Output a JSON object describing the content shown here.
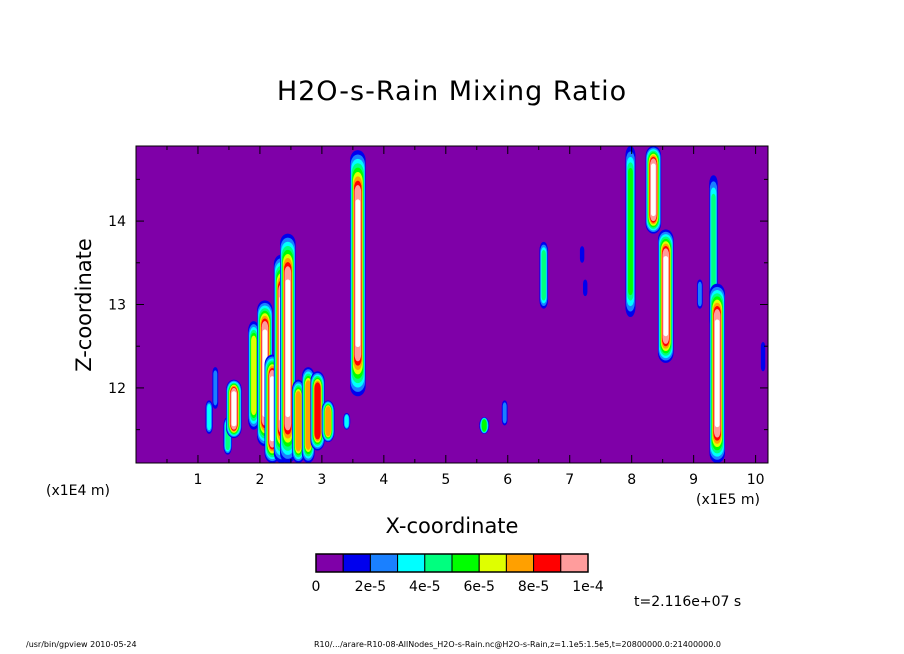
{
  "chart_data": {
    "type": "heatmap",
    "title": "H2O-s-Rain Mixing Ratio",
    "xlabel": "X-coordinate",
    "ylabel": "Z-coordinate",
    "x_unit_label": "(x1E5 m)",
    "y_unit_label": "(x1E4 m)",
    "xlim": [
      0.0,
      10.2
    ],
    "ylim": [
      11.1,
      14.9
    ],
    "x_ticks": [
      1,
      2,
      3,
      4,
      5,
      6,
      7,
      8,
      9,
      10
    ],
    "y_ticks": [
      12,
      13,
      14
    ],
    "colorbar": {
      "labels": [
        "0",
        "2e-5",
        "4e-5",
        "6e-5",
        "8e-5",
        "1e-4"
      ],
      "colors": [
        "#7f00a8",
        "#0000ee",
        "#1a80ff",
        "#00ffff",
        "#00ff7f",
        "#00ff00",
        "#dfff00",
        "#ffa000",
        "#ff0000",
        "#ff9c9c"
      ]
    },
    "background_color": "#7f00a8",
    "features": [
      {
        "x": 1.18,
        "z_min": 11.45,
        "z_max": 11.85,
        "level": 3
      },
      {
        "x": 1.28,
        "z_min": 11.75,
        "z_max": 12.25,
        "level": 2
      },
      {
        "x": 1.48,
        "z_min": 11.2,
        "z_max": 11.65,
        "level": 4
      },
      {
        "x": 1.58,
        "z_min": 11.4,
        "z_max": 12.1,
        "level": 9
      },
      {
        "x": 1.9,
        "z_min": 11.5,
        "z_max": 12.8,
        "level": 6
      },
      {
        "x": 2.08,
        "z_min": 11.3,
        "z_max": 13.05,
        "level": 9
      },
      {
        "x": 2.2,
        "z_min": 11.1,
        "z_max": 12.4,
        "level": 9
      },
      {
        "x": 2.35,
        "z_min": 11.1,
        "z_max": 13.6,
        "level": 9
      },
      {
        "x": 2.45,
        "z_min": 11.1,
        "z_max": 13.85,
        "level": 9
      },
      {
        "x": 2.62,
        "z_min": 11.1,
        "z_max": 12.1,
        "level": 7
      },
      {
        "x": 2.78,
        "z_min": 11.1,
        "z_max": 12.25,
        "level": 7
      },
      {
        "x": 2.93,
        "z_min": 11.25,
        "z_max": 12.2,
        "level": 8
      },
      {
        "x": 3.1,
        "z_min": 11.35,
        "z_max": 11.85,
        "level": 7
      },
      {
        "x": 3.4,
        "z_min": 11.5,
        "z_max": 11.7,
        "level": 3
      },
      {
        "x": 3.58,
        "z_min": 11.9,
        "z_max": 14.85,
        "level": 9
      },
      {
        "x": 5.62,
        "z_min": 11.45,
        "z_max": 11.65,
        "level": 5
      },
      {
        "x": 5.95,
        "z_min": 11.55,
        "z_max": 11.85,
        "level": 2
      },
      {
        "x": 6.58,
        "z_min": 12.95,
        "z_max": 13.75,
        "level": 4
      },
      {
        "x": 7.2,
        "z_min": 13.5,
        "z_max": 13.7,
        "level": 1
      },
      {
        "x": 7.25,
        "z_min": 13.1,
        "z_max": 13.3,
        "level": 1
      },
      {
        "x": 7.98,
        "z_min": 12.85,
        "z_max": 14.9,
        "level": 5
      },
      {
        "x": 8.35,
        "z_min": 13.85,
        "z_max": 14.9,
        "level": 9
      },
      {
        "x": 8.55,
        "z_min": 12.3,
        "z_max": 13.9,
        "level": 9
      },
      {
        "x": 9.1,
        "z_min": 12.95,
        "z_max": 13.3,
        "level": 2
      },
      {
        "x": 9.32,
        "z_min": 12.7,
        "z_max": 14.55,
        "level": 4
      },
      {
        "x": 9.38,
        "z_min": 11.1,
        "z_max": 13.25,
        "level": 9
      },
      {
        "x": 10.12,
        "z_min": 12.2,
        "z_max": 12.55,
        "level": 1
      }
    ]
  },
  "annotations": {
    "time": "t=2.116e+07 s",
    "footer_left": "/usr/bin/gpview   2010-05-24",
    "footer_right": "R10/.../arare-R10-08-AllNodes_H2O-s-Rain.nc@H2O-s-Rain,z=1.1e5:1.5e5,t=20800000.0:21400000.0"
  }
}
